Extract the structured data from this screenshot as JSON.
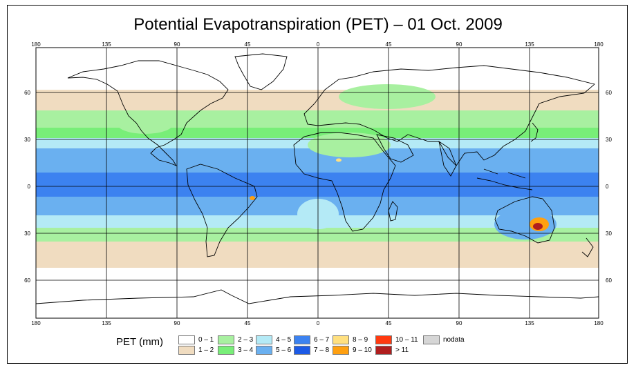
{
  "title": "Potential Evapotranspiration (PET) – 01 Oct. 2009",
  "axes": {
    "lon_ticks": [
      "180",
      "135",
      "90",
      "45",
      "0",
      "45",
      "90",
      "135",
      "180"
    ],
    "lat_ticks": [
      "60",
      "30",
      "0",
      "30",
      "60"
    ]
  },
  "legend": {
    "title": "PET (mm)",
    "items": [
      {
        "label": "0 – 1",
        "color": "#ffffff"
      },
      {
        "label": "1 – 2",
        "color": "#f0dcc0"
      },
      {
        "label": "2 – 3",
        "color": "#a8f0a0"
      },
      {
        "label": "3 – 4",
        "color": "#78ee78"
      },
      {
        "label": "4 – 5",
        "color": "#b4eaf6"
      },
      {
        "label": "5 – 6",
        "color": "#6ab0f0"
      },
      {
        "label": "6 – 7",
        "color": "#3c82f0"
      },
      {
        "label": "7 – 8",
        "color": "#1c5ae6"
      },
      {
        "label": "8 – 9",
        "color": "#ffe080"
      },
      {
        "label": "9 – 10",
        "color": "#ffa010"
      },
      {
        "label": "10 – 11",
        "color": "#ff3a10"
      },
      {
        "label": "> 11",
        "color": "#b01e1e"
      },
      {
        "label": "nodata",
        "color": "#d6d6d6"
      }
    ]
  }
}
